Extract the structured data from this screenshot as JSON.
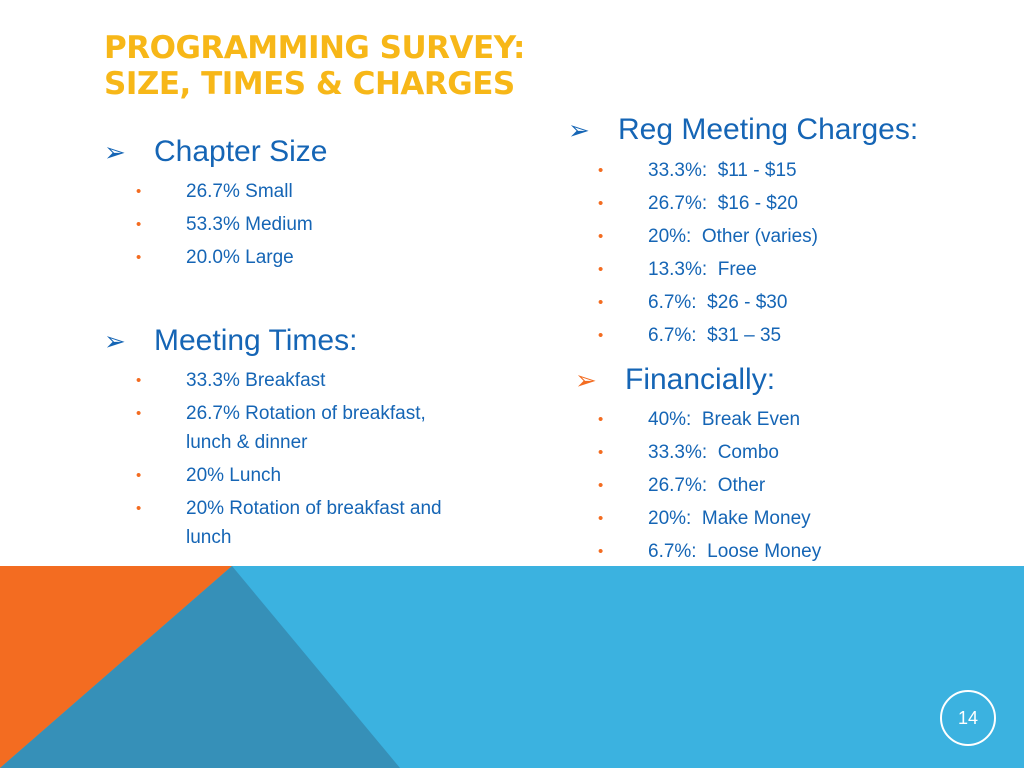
{
  "title": {
    "line1": "PROGRAMMING SURVEY:",
    "line2": "SIZE, TIMES & CHARGES"
  },
  "colors": {
    "title": "#f7b718",
    "text": "#1565b5",
    "bullet": "#f36c21",
    "orange": "#f36c21",
    "blue_light": "#3bb2e0",
    "blue_dark": "#3690b8"
  },
  "sections": {
    "chapter_size": {
      "heading": "Chapter Size",
      "items": [
        "26.7% Small",
        "53.3% Medium",
        "20.0% Large"
      ]
    },
    "meeting_times": {
      "heading": "Meeting Times:",
      "items": [
        "33.3% Breakfast",
        "26.7% Rotation of breakfast, lunch & dinner",
        "20% Lunch",
        "20% Rotation of breakfast and lunch"
      ]
    },
    "reg_meeting_charges": {
      "heading": "Reg Meeting Charges:",
      "items": [
        "33.3%:  $11 - $15",
        "26.7%:  $16 - $20",
        "20%:  Other (varies)",
        "13.3%:  Free",
        "6.7%:  $26 - $30",
        "6.7%:  $31 – 35"
      ]
    },
    "financially": {
      "heading": "Financially:",
      "items": [
        "40%:  Break Even",
        "33.3%:  Combo",
        "26.7%:  Other",
        "20%:  Make Money",
        "6.7%:  Loose Money"
      ]
    }
  },
  "symbols": {
    "arrow": "➢",
    "bullet": "•"
  },
  "page_number": "14"
}
